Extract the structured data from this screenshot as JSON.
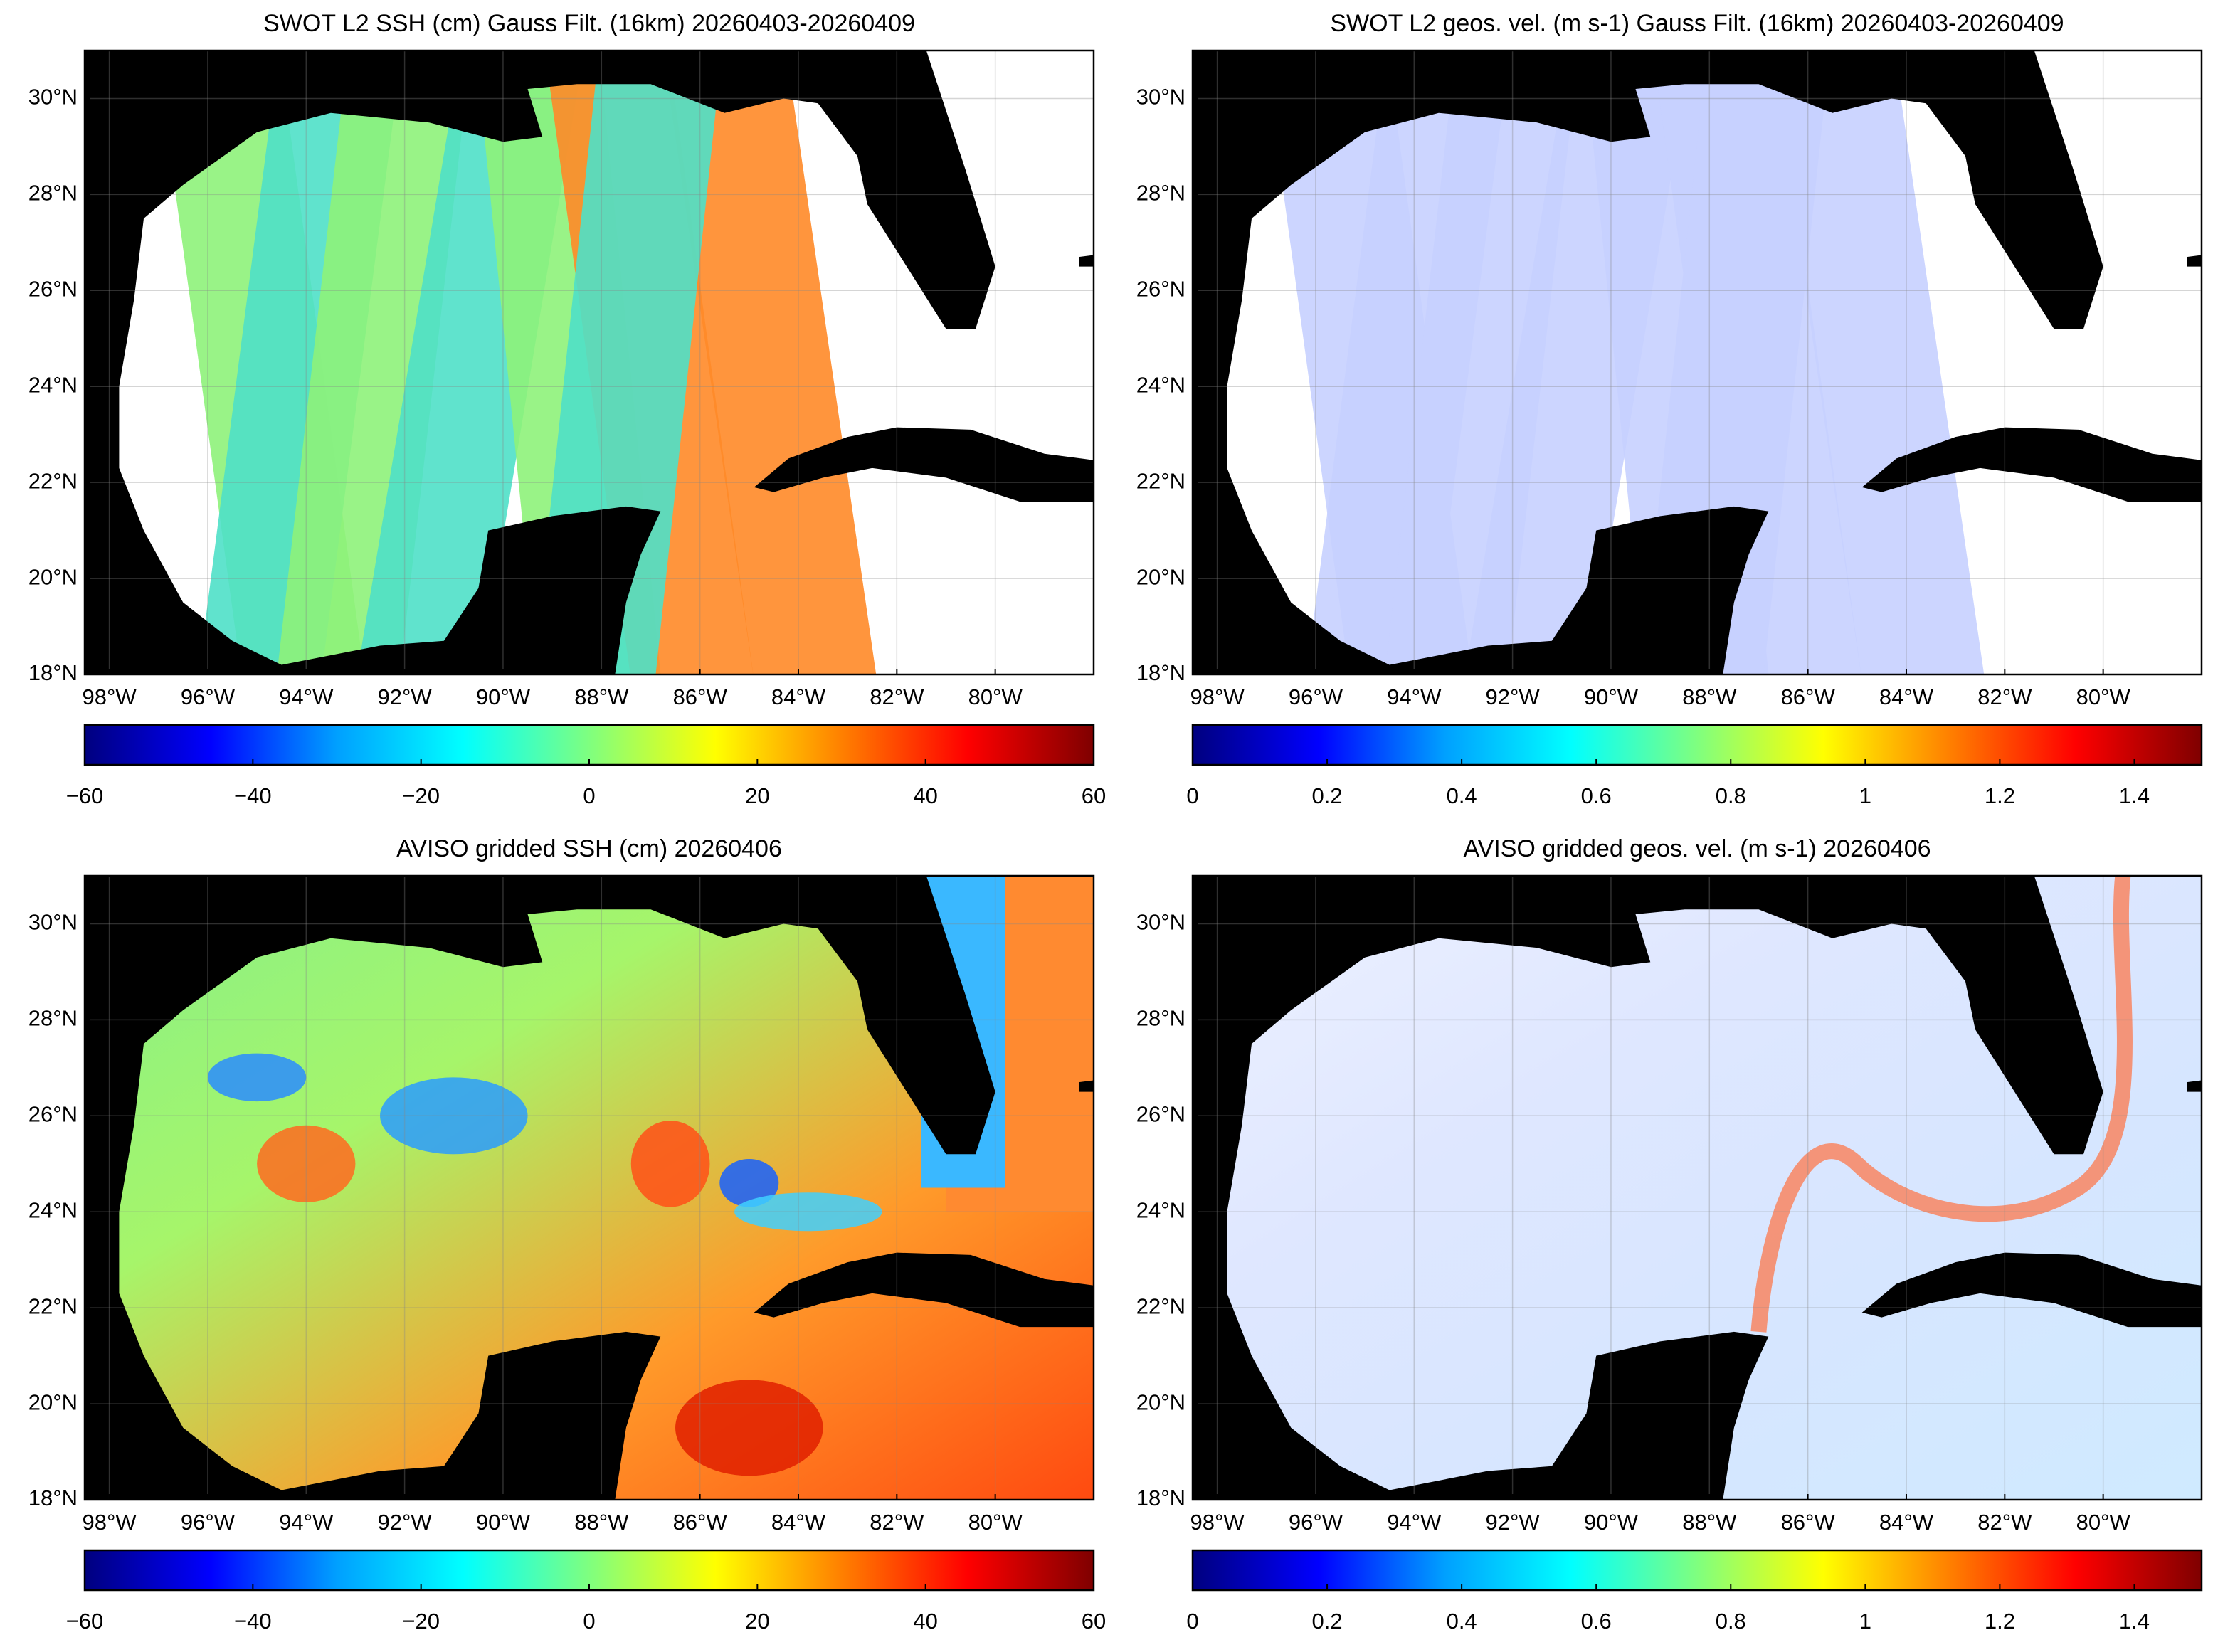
{
  "chart_data": [
    {
      "type": "map",
      "title": "SWOT L2 SSH (cm) Gauss Filt. (16km) 20260403-20260409",
      "colormap": "jet",
      "grid": true,
      "xlim": [
        -98.5,
        -78
      ],
      "ylim": [
        18,
        31
      ],
      "xticks": [
        {
          "value": -98,
          "label": "98°W"
        },
        {
          "value": -96,
          "label": "96°W"
        },
        {
          "value": -94,
          "label": "94°W"
        },
        {
          "value": -92,
          "label": "92°W"
        },
        {
          "value": -90,
          "label": "90°W"
        },
        {
          "value": -88,
          "label": "88°W"
        },
        {
          "value": -86,
          "label": "86°W"
        },
        {
          "value": -84,
          "label": "84°W"
        },
        {
          "value": -82,
          "label": "82°W"
        },
        {
          "value": -80,
          "label": "80°W"
        }
      ],
      "yticks": [
        {
          "value": 18,
          "label": "18°N"
        },
        {
          "value": 20,
          "label": "20°N"
        },
        {
          "value": 22,
          "label": "22°N"
        },
        {
          "value": 24,
          "label": "24°N"
        },
        {
          "value": 26,
          "label": "26°N"
        },
        {
          "value": 28,
          "label": "28°N"
        },
        {
          "value": 30,
          "label": "30°N"
        }
      ],
      "clim": [
        -60,
        60
      ],
      "cticks": [
        {
          "value": -60,
          "label": "−60"
        },
        {
          "value": -40,
          "label": "−40"
        },
        {
          "value": -20,
          "label": "−20"
        },
        0,
        20,
        40,
        60
      ]
    },
    {
      "type": "map",
      "title": "SWOT L2 geos. vel. (m s-1) Gauss Filt. (16km) 20260403-20260409",
      "colormap": "jet",
      "grid": true,
      "xlim": [
        -98.5,
        -78
      ],
      "ylim": [
        18,
        31
      ],
      "xticks": [
        {
          "value": -98,
          "label": "98°W"
        },
        {
          "value": -96,
          "label": "96°W"
        },
        {
          "value": -94,
          "label": "94°W"
        },
        {
          "value": -92,
          "label": "92°W"
        },
        {
          "value": -90,
          "label": "90°W"
        },
        {
          "value": -88,
          "label": "88°W"
        },
        {
          "value": -86,
          "label": "86°W"
        },
        {
          "value": -84,
          "label": "84°W"
        },
        {
          "value": -82,
          "label": "82°W"
        },
        {
          "value": -80,
          "label": "80°W"
        }
      ],
      "yticks": [
        {
          "value": 18,
          "label": "18°N"
        },
        {
          "value": 20,
          "label": "20°N"
        },
        {
          "value": 22,
          "label": "22°N"
        },
        {
          "value": 24,
          "label": "24°N"
        },
        {
          "value": 26,
          "label": "26°N"
        },
        {
          "value": 28,
          "label": "28°N"
        },
        {
          "value": 30,
          "label": "30°N"
        }
      ],
      "clim": [
        0,
        1.5
      ],
      "cticks": [
        0,
        0.2,
        0.4,
        0.6,
        0.8,
        1,
        1.2,
        1.4
      ]
    },
    {
      "type": "map",
      "title": "AVISO gridded SSH (cm) 20260406",
      "colormap": "jet",
      "grid": true,
      "xlim": [
        -98.5,
        -78
      ],
      "ylim": [
        18,
        31
      ],
      "xticks": [
        {
          "value": -98,
          "label": "98°W"
        },
        {
          "value": -96,
          "label": "96°W"
        },
        {
          "value": -94,
          "label": "94°W"
        },
        {
          "value": -92,
          "label": "92°W"
        },
        {
          "value": -90,
          "label": "90°W"
        },
        {
          "value": -88,
          "label": "88°W"
        },
        {
          "value": -86,
          "label": "86°W"
        },
        {
          "value": -84,
          "label": "84°W"
        },
        {
          "value": -82,
          "label": "82°W"
        },
        {
          "value": -80,
          "label": "80°W"
        }
      ],
      "yticks": [
        {
          "value": 18,
          "label": "18°N"
        },
        {
          "value": 20,
          "label": "20°N"
        },
        {
          "value": 22,
          "label": "22°N"
        },
        {
          "value": 24,
          "label": "24°N"
        },
        {
          "value": 26,
          "label": "26°N"
        },
        {
          "value": 28,
          "label": "28°N"
        },
        {
          "value": 30,
          "label": "30°N"
        }
      ],
      "clim": [
        -60,
        60
      ],
      "cticks": [
        {
          "value": -60,
          "label": "−60"
        },
        {
          "value": -40,
          "label": "−40"
        },
        {
          "value": -20,
          "label": "−20"
        },
        0,
        20,
        40,
        60
      ]
    },
    {
      "type": "map",
      "title": "AVISO gridded geos. vel. (m s-1)  20260406",
      "colormap": "jet",
      "grid": true,
      "xlim": [
        -98.5,
        -78
      ],
      "ylim": [
        18,
        31
      ],
      "xticks": [
        {
          "value": -98,
          "label": "98°W"
        },
        {
          "value": -96,
          "label": "96°W"
        },
        {
          "value": -94,
          "label": "94°W"
        },
        {
          "value": -92,
          "label": "92°W"
        },
        {
          "value": -90,
          "label": "90°W"
        },
        {
          "value": -88,
          "label": "88°W"
        },
        {
          "value": -86,
          "label": "86°W"
        },
        {
          "value": -84,
          "label": "84°W"
        },
        {
          "value": -82,
          "label": "82°W"
        },
        {
          "value": -80,
          "label": "80°W"
        }
      ],
      "yticks": [
        {
          "value": 18,
          "label": "18°N"
        },
        {
          "value": 20,
          "label": "20°N"
        },
        {
          "value": 22,
          "label": "22°N"
        },
        {
          "value": 24,
          "label": "24°N"
        },
        {
          "value": 26,
          "label": "26°N"
        },
        {
          "value": 28,
          "label": "28°N"
        },
        {
          "value": 30,
          "label": "30°N"
        }
      ],
      "clim": [
        0,
        1.5
      ],
      "cticks": [
        0,
        0.2,
        0.4,
        0.6,
        0.8,
        1,
        1.2,
        1.4
      ]
    }
  ]
}
